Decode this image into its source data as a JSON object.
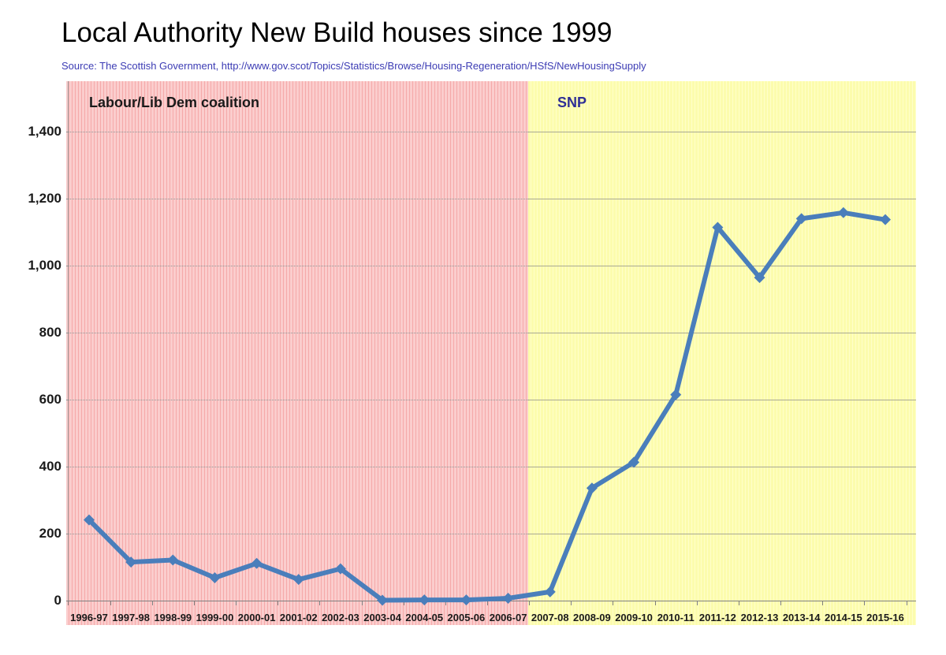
{
  "header": {
    "title": "Local Authority New Build houses since 1999",
    "source": "Source: The Scottish Government, http://www.gov.scot/Topics/Statistics/Browse/Housing-Regeneration/HSfS/NewHousingSupply"
  },
  "chart_data": {
    "type": "line",
    "title": "Local Authority New Build houses since 1999",
    "xlabel": "",
    "ylabel": "",
    "categories": [
      "1996-97",
      "1997-98",
      "1998-99",
      "1999-00",
      "2000-01",
      "2001-02",
      "2002-03",
      "2003-04",
      "2004-05",
      "2005-06",
      "2006-07",
      "2007-08",
      "2008-09",
      "2009-10",
      "2010-11",
      "2011-12",
      "2012-13",
      "2013-14",
      "2014-15",
      "2015-16"
    ],
    "values": [
      240,
      114,
      120,
      67,
      110,
      62,
      94,
      0,
      1,
      1,
      6,
      25,
      335,
      412,
      614,
      1114,
      964,
      1140,
      1158,
      1137
    ],
    "ylim": [
      0,
      1400
    ],
    "ytick_step": 200,
    "ytick_labels": [
      "0",
      "200",
      "400",
      "600",
      "800",
      "1,000",
      "1,200",
      "1,400"
    ],
    "grid": true,
    "legend": "none",
    "marker": "diamond",
    "regions": [
      {
        "label": "Labour/Lib Dem coalition",
        "from": "1996-97",
        "to": "2006-07",
        "label_color": "#1a1a1a"
      },
      {
        "label": "SNP",
        "from": "2007-08",
        "to": "2015-16",
        "label_color": "#2E2E96"
      }
    ]
  },
  "colors": {
    "line": "#4A7EBB",
    "pink_base": "#FBCDCD",
    "pink_stripe": "#F5A9A9",
    "yellow_base": "#FCFCAD",
    "yellow_stripe": "#FFFFC9",
    "source_text": "#3C3CB4"
  }
}
